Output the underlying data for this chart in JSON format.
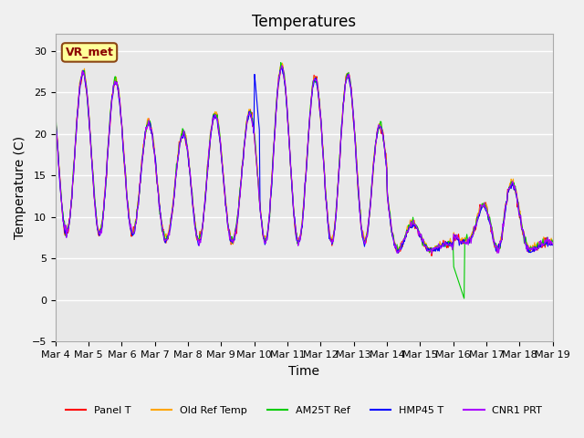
{
  "title": "Temperatures",
  "xlabel": "Time",
  "ylabel": "Temperature (C)",
  "ylim": [
    -5,
    32
  ],
  "yticks": [
    -5,
    0,
    5,
    10,
    15,
    20,
    25,
    30
  ],
  "date_labels": [
    "Mar 4",
    "Mar 5",
    "Mar 6",
    "Mar 7",
    "Mar 8",
    "Mar 9",
    "Mar 10",
    "Mar 11",
    "Mar 12",
    "Mar 13",
    "Mar 14",
    "Mar 15",
    "Mar 16",
    "Mar 17",
    "Mar 18",
    "Mar 19"
  ],
  "series_colors": {
    "Panel T": "#ff0000",
    "Old Ref Temp": "#ffa500",
    "AM25T Ref": "#00cc00",
    "HMP45 T": "#0000ff",
    "CNR1 PRT": "#aa00ff"
  },
  "annotation_text": "VR_met",
  "annotation_bbox": {
    "facecolor": "#ffff99",
    "edgecolor": "#8b4513",
    "boxstyle": "round,pad=0.3"
  },
  "background_color": "#e8e8e8",
  "axes_facecolor": "#e8e8e8",
  "grid_color": "#ffffff",
  "title_fontsize": 12,
  "axis_fontsize": 10,
  "tick_fontsize": 8
}
